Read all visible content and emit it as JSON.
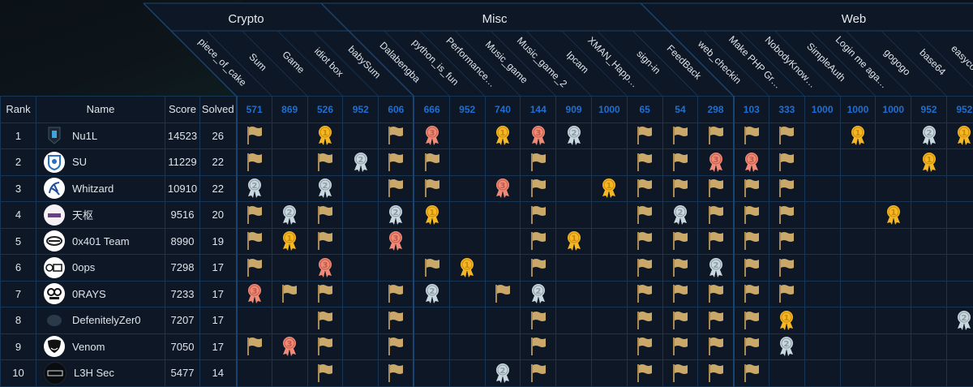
{
  "columns_header": {
    "rank": "Rank",
    "name": "Name",
    "score": "Score",
    "solved": "Solved"
  },
  "categories": [
    {
      "name": "Crypto",
      "challenges": [
        {
          "name": "piece_of_cake",
          "points": "571"
        },
        {
          "name": "Sum",
          "points": "869"
        },
        {
          "name": "Game",
          "points": "526"
        },
        {
          "name": "idiot box",
          "points": "952"
        },
        {
          "name": "babySum",
          "points": "606"
        }
      ]
    },
    {
      "name": "Misc",
      "challenges": [
        {
          "name": "Dalabengba",
          "points": "666"
        },
        {
          "name": "python_is_fun",
          "points": "952"
        },
        {
          "name": "Performance…",
          "points": "740"
        },
        {
          "name": "Music_game",
          "points": "144"
        },
        {
          "name": "Music_game_2",
          "points": "909"
        },
        {
          "name": "Ipcam",
          "points": "1000"
        },
        {
          "name": "XMAN_Happ…",
          "points": "65"
        },
        {
          "name": "sign-in",
          "points": "54"
        },
        {
          "name": "FeedBack",
          "points": "298"
        }
      ]
    },
    {
      "name": "Web",
      "challenges": [
        {
          "name": "web_checkin",
          "points": "103"
        },
        {
          "name": "Make PHP Gr…",
          "points": "333"
        },
        {
          "name": "NobodyKnow…",
          "points": "1000"
        },
        {
          "name": "SimpleAuth",
          "points": "1000"
        },
        {
          "name": "Login me aga…",
          "points": "1000"
        },
        {
          "name": "gogogo",
          "points": "952"
        },
        {
          "name": "base64",
          "points": "952"
        },
        {
          "name": "easycof…",
          "points": ""
        }
      ]
    }
  ],
  "icon_colors": {
    "flag": "#c9a86a",
    "gold": "#f5b723",
    "silver": "#c9d7df",
    "bronze": "#ef8a76"
  },
  "legend_icons": {
    "F": "flag-icon",
    "1": "gold-medal-icon",
    "2": "silver-medal-icon",
    "3": "bronze-medal-icon"
  },
  "teams": [
    {
      "rank": "1",
      "name": "Nu1L",
      "score": "14523",
      "solved": "26",
      "logo": "shield-dark",
      "solves": [
        "F",
        "",
        "1",
        "",
        "F",
        "3",
        "",
        "1",
        "3",
        "2",
        "",
        "F",
        "F",
        "F",
        "F",
        "F",
        "",
        "1",
        "",
        "2",
        "1"
      ]
    },
    {
      "rank": "2",
      "name": "SU",
      "score": "11229",
      "solved": "22",
      "logo": "shield-blue",
      "solves": [
        "F",
        "",
        "F",
        "2",
        "F",
        "F",
        "",
        "",
        "F",
        "",
        "",
        "F",
        "F",
        "3",
        "3",
        "F",
        "",
        "",
        "",
        "1",
        ""
      ]
    },
    {
      "rank": "3",
      "name": "Whitzard",
      "score": "10910",
      "solved": "22",
      "logo": "dragon-blue",
      "solves": [
        "2",
        "",
        "2",
        "",
        "F",
        "F",
        "",
        "3",
        "F",
        "",
        "1",
        "F",
        "F",
        "F",
        "F",
        "F",
        "",
        "",
        "",
        "",
        ""
      ]
    },
    {
      "rank": "4",
      "name": "天枢",
      "score": "9516",
      "solved": "20",
      "logo": "tianshu",
      "solves": [
        "F",
        "2",
        "F",
        "",
        "2",
        "1",
        "",
        "",
        "F",
        "",
        "",
        "F",
        "2",
        "F",
        "F",
        "F",
        "",
        "",
        "1",
        "",
        ""
      ]
    },
    {
      "rank": "5",
      "name": "0x401 Team",
      "score": "8990",
      "solved": "19",
      "logo": "emblem",
      "solves": [
        "F",
        "1",
        "F",
        "",
        "3",
        "",
        "",
        "",
        "F",
        "1",
        "",
        "F",
        "F",
        "F",
        "F",
        "F",
        "",
        "",
        "",
        "",
        ""
      ]
    },
    {
      "rank": "6",
      "name": "0ops",
      "score": "7298",
      "solved": "17",
      "logo": "0ops",
      "solves": [
        "F",
        "",
        "3",
        "",
        "",
        "F",
        "1",
        "",
        "F",
        "",
        "",
        "F",
        "F",
        "2",
        "F",
        "F",
        "",
        "",
        "",
        "",
        ""
      ]
    },
    {
      "rank": "7",
      "name": "0RAYS",
      "score": "7233",
      "solved": "17",
      "logo": "eyes",
      "solves": [
        "3",
        "F",
        "F",
        "",
        "F",
        "2",
        "",
        "F",
        "2",
        "",
        "",
        "F",
        "F",
        "F",
        "F",
        "F",
        "",
        "",
        "",
        "",
        ""
      ]
    },
    {
      "rank": "8",
      "name": "DefenitelyZer0",
      "score": "7207",
      "solved": "17",
      "logo": "blob-dark",
      "solves": [
        "",
        "",
        "F",
        "",
        "F",
        "",
        "",
        "",
        "F",
        "",
        "",
        "F",
        "F",
        "F",
        "F",
        "1",
        "",
        "",
        "",
        "",
        "2"
      ]
    },
    {
      "rank": "9",
      "name": "Venom",
      "score": "7050",
      "solved": "17",
      "logo": "venom",
      "solves": [
        "F",
        "3",
        "F",
        "",
        "F",
        "",
        "",
        "",
        "F",
        "",
        "",
        "F",
        "F",
        "F",
        "F",
        "2",
        "",
        "",
        "",
        "",
        ""
      ]
    },
    {
      "rank": "10",
      "name": "L3H Sec",
      "score": "5477",
      "solved": "14",
      "logo": "dark-circle",
      "solves": [
        "",
        "",
        "F",
        "",
        "F",
        "",
        "",
        "2",
        "F",
        "",
        "",
        "F",
        "F",
        "F",
        "F",
        "",
        "",
        "",
        "",
        "",
        ""
      ]
    }
  ]
}
